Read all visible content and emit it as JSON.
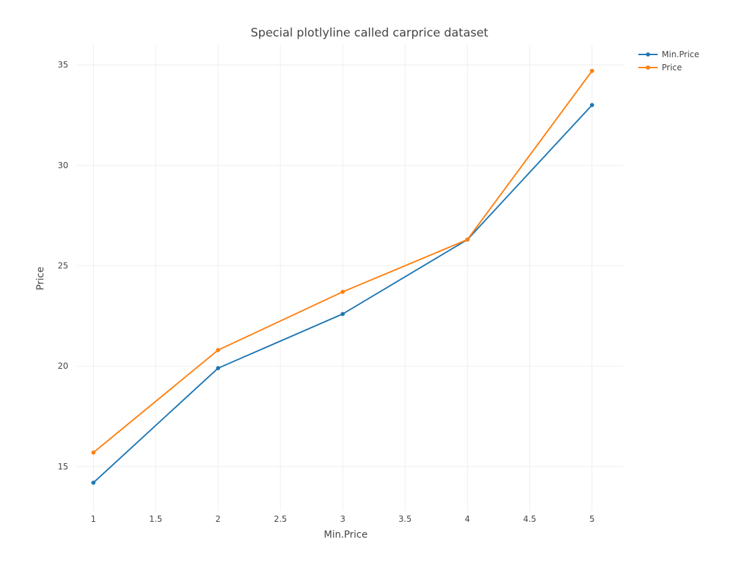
{
  "chart_data": {
    "type": "line",
    "title": "Special plotlyline called carprice dataset",
    "xlabel": "Min.Price",
    "ylabel": "Price",
    "xlim": [
      0.87,
      5.25
    ],
    "ylim": [
      12.8,
      36.0
    ],
    "grid": true,
    "legend_position": "top-right",
    "x_ticks": [
      1,
      1.5,
      2,
      2.5,
      3,
      3.5,
      4,
      4.5,
      5
    ],
    "x_tick_labels": [
      "1",
      "1.5",
      "2",
      "2.5",
      "3",
      "3.5",
      "4",
      "4.5",
      "5"
    ],
    "y_ticks": [
      15,
      20,
      25,
      30,
      35
    ],
    "y_tick_labels": [
      "15",
      "20",
      "25",
      "30",
      "35"
    ],
    "x": [
      1,
      2,
      3,
      4,
      5
    ],
    "series": [
      {
        "name": "Min.Price",
        "values": [
          14.2,
          19.9,
          22.6,
          26.3,
          33.0
        ],
        "color": "#1f77b4"
      },
      {
        "name": "Price",
        "values": [
          15.7,
          20.8,
          23.7,
          26.3,
          34.7
        ],
        "color": "#ff7f0e"
      }
    ]
  }
}
